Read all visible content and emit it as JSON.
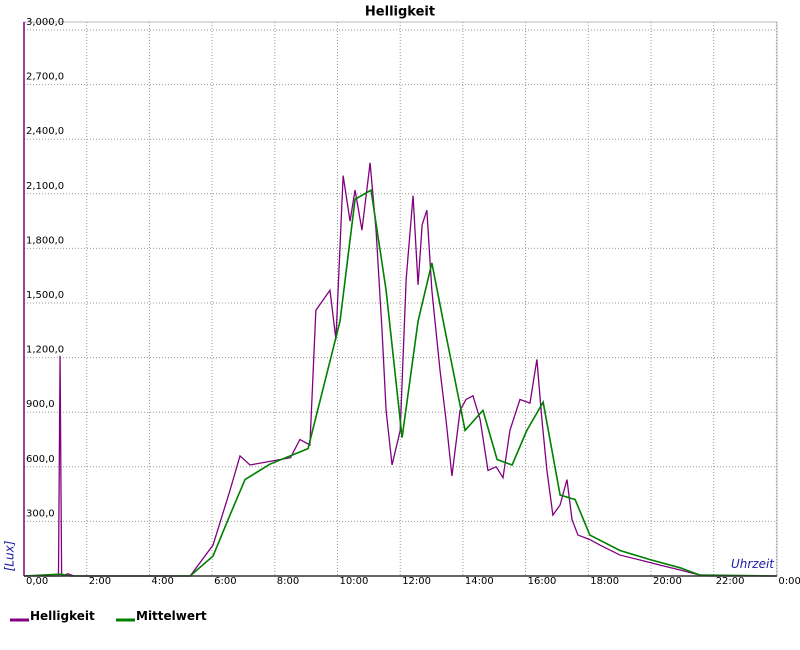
{
  "chart_data": {
    "type": "line",
    "title": "Helligkeit",
    "ylabel": "[Lux]",
    "xlabel": "Uhrzeit",
    "xlim": [
      0,
      24
    ],
    "ylim": [
      0,
      3000
    ],
    "xticks": [
      {
        "value": 0,
        "label": "0,00"
      },
      {
        "value": 2,
        "label": "2:00"
      },
      {
        "value": 4,
        "label": "4:00"
      },
      {
        "value": 6,
        "label": "6:00"
      },
      {
        "value": 8,
        "label": "8:00"
      },
      {
        "value": 10,
        "label": "10:00"
      },
      {
        "value": 12,
        "label": "12:00"
      },
      {
        "value": 14,
        "label": "14:00"
      },
      {
        "value": 16,
        "label": "16:00"
      },
      {
        "value": 18,
        "label": "18:00"
      },
      {
        "value": 20,
        "label": "20:00"
      },
      {
        "value": 22,
        "label": "22:00"
      },
      {
        "value": 24,
        "label": "0:00"
      }
    ],
    "yticks": [
      {
        "value": 300,
        "label": "300,0"
      },
      {
        "value": 600,
        "label": "600,0"
      },
      {
        "value": 900,
        "label": "900,0"
      },
      {
        "value": 1200,
        "label": "1,200,0"
      },
      {
        "value": 1500,
        "label": "1,500,0"
      },
      {
        "value": 1800,
        "label": "1,800,0"
      },
      {
        "value": 2100,
        "label": "2,100,0"
      },
      {
        "value": 2400,
        "label": "2,400,0"
      },
      {
        "value": 2700,
        "label": "2,700,0"
      },
      {
        "value": 3000,
        "label": "3,000,0"
      }
    ],
    "grid": true,
    "series": [
      {
        "name": "Helligkeit",
        "color": "#800080",
        "x": [
          0,
          1.1,
          1.15,
          1.2,
          1.4,
          1.6,
          5.3,
          6.03,
          6.57,
          6.89,
          7.21,
          8.5,
          8.8,
          9.12,
          9.31,
          9.76,
          9.95,
          10.18,
          10.4,
          10.56,
          10.78,
          11.04,
          11.23,
          11.42,
          11.55,
          11.74,
          12.0,
          12.19,
          12.41,
          12.57,
          12.7,
          12.85,
          13.01,
          13.27,
          13.46,
          13.65,
          13.91,
          14.1,
          14.32,
          14.55,
          14.8,
          15.06,
          15.28,
          15.5,
          15.82,
          16.14,
          16.36,
          16.52,
          16.68,
          16.87,
          17.1,
          17.32,
          17.48,
          17.67,
          18.05,
          18.37,
          19.01,
          19.65,
          20.29,
          20.93,
          21.56,
          21.88,
          24
        ],
        "values": [
          0,
          0,
          1210,
          0,
          12,
          0,
          0,
          170,
          470,
          660,
          610,
          650,
          750,
          720,
          1460,
          1570,
          1300,
          2200,
          1950,
          2120,
          1900,
          2270,
          1900,
          1350,
          910,
          610,
          800,
          1630,
          2090,
          1600,
          1930,
          2010,
          1570,
          1130,
          860,
          550,
          910,
          970,
          990,
          860,
          580,
          600,
          540,
          800,
          970,
          950,
          1190,
          860,
          580,
          335,
          390,
          530,
          310,
          225,
          200,
          170,
          115,
          88,
          60,
          33,
          5,
          0,
          0
        ]
      },
      {
        "name": "Mittelwert",
        "color": "#008000",
        "x": [
          0,
          1.15,
          1.5,
          5.3,
          6.03,
          6.57,
          7.05,
          7.85,
          9.06,
          10.08,
          10.56,
          11.07,
          11.55,
          12.06,
          12.57,
          13.01,
          13.43,
          14.07,
          14.64,
          15.09,
          15.57,
          16.04,
          16.56,
          17.1,
          17.58,
          18.05,
          19.01,
          19.97,
          20.93,
          21.56,
          24
        ],
        "values": [
          0,
          10,
          0,
          0,
          110,
          335,
          530,
          615,
          700,
          1400,
          2070,
          2120,
          1570,
          760,
          1400,
          1720,
          1350,
          800,
          910,
          640,
          610,
          800,
          955,
          445,
          420,
          225,
          140,
          90,
          45,
          5,
          0
        ]
      }
    ]
  }
}
